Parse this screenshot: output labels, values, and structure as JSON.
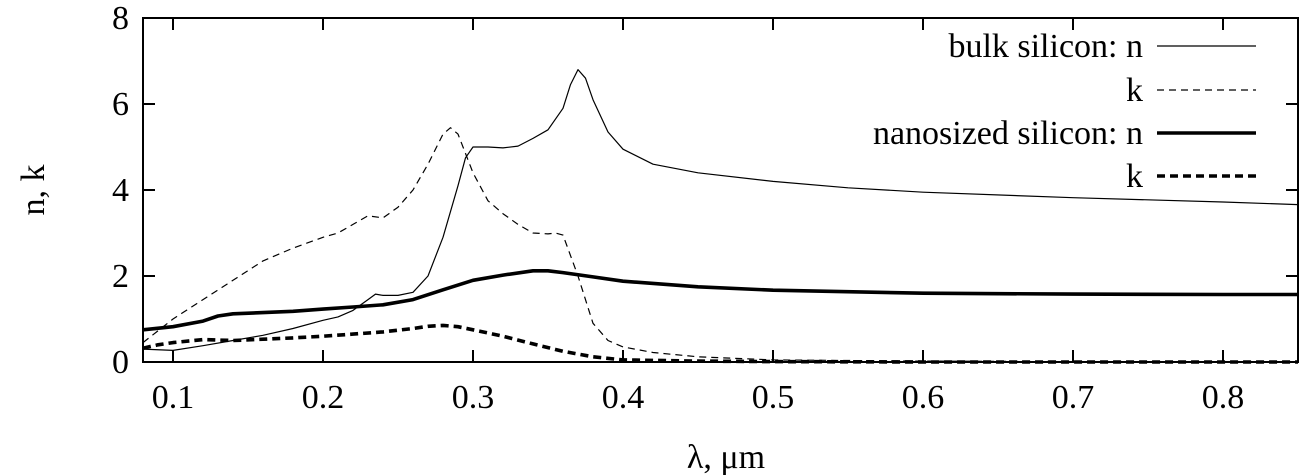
{
  "chart_data": {
    "type": "line",
    "title": "",
    "xlabel": "λ, μm",
    "ylabel": "n, k",
    "xlim": [
      0.08,
      0.85
    ],
    "ylim": [
      0,
      8
    ],
    "xticks": [
      0.1,
      0.2,
      0.3,
      0.4,
      0.5,
      0.6,
      0.7,
      0.8
    ],
    "xtick_labels": [
      "0.1",
      "0.2",
      "0.3",
      "0.4",
      "0.5",
      "0.6",
      "0.7",
      "0.8"
    ],
    "yticks": [
      0,
      2,
      4,
      6,
      8
    ],
    "ytick_labels": [
      "0",
      "2",
      "4",
      "6",
      "8"
    ],
    "grid": false,
    "legend_position": "top-right",
    "series": [
      {
        "name": "bulk silicon: n",
        "legend_label": "bulk silicon: n",
        "style": "solid-thin",
        "x": [
          0.08,
          0.1,
          0.12,
          0.14,
          0.16,
          0.18,
          0.2,
          0.21,
          0.22,
          0.23,
          0.235,
          0.24,
          0.25,
          0.26,
          0.27,
          0.28,
          0.29,
          0.295,
          0.3,
          0.31,
          0.32,
          0.33,
          0.34,
          0.35,
          0.36,
          0.365,
          0.37,
          0.375,
          0.38,
          0.39,
          0.4,
          0.42,
          0.45,
          0.5,
          0.55,
          0.6,
          0.7,
          0.8,
          0.85
        ],
        "y": [
          0.3,
          0.27,
          0.38,
          0.5,
          0.62,
          0.78,
          0.97,
          1.05,
          1.2,
          1.45,
          1.58,
          1.55,
          1.55,
          1.62,
          2.0,
          2.9,
          4.1,
          4.75,
          5.0,
          5.0,
          4.98,
          5.02,
          5.2,
          5.4,
          5.9,
          6.45,
          6.8,
          6.6,
          6.1,
          5.35,
          4.95,
          4.6,
          4.4,
          4.2,
          4.05,
          3.95,
          3.82,
          3.72,
          3.66
        ]
      },
      {
        "name": "bulk silicon: k",
        "legend_label": "k",
        "style": "dashed-thin",
        "x": [
          0.08,
          0.1,
          0.12,
          0.14,
          0.16,
          0.18,
          0.2,
          0.21,
          0.22,
          0.23,
          0.24,
          0.25,
          0.26,
          0.27,
          0.28,
          0.285,
          0.29,
          0.3,
          0.31,
          0.32,
          0.33,
          0.34,
          0.35,
          0.355,
          0.36,
          0.37,
          0.38,
          0.39,
          0.4,
          0.42,
          0.45,
          0.5,
          0.6,
          0.7,
          0.8,
          0.85
        ],
        "y": [
          0.45,
          1.0,
          1.45,
          1.9,
          2.35,
          2.65,
          2.9,
          3.0,
          3.2,
          3.4,
          3.35,
          3.6,
          4.0,
          4.6,
          5.3,
          5.45,
          5.3,
          4.4,
          3.75,
          3.45,
          3.2,
          3.0,
          2.98,
          3.0,
          2.95,
          2.0,
          0.9,
          0.5,
          0.35,
          0.22,
          0.12,
          0.05,
          0.02,
          0.01,
          0.01,
          0.01
        ]
      },
      {
        "name": "nanosized silicon: n",
        "legend_label": "nanosized silicon: n",
        "style": "solid-thick",
        "x": [
          0.08,
          0.1,
          0.12,
          0.13,
          0.14,
          0.16,
          0.18,
          0.2,
          0.22,
          0.24,
          0.26,
          0.28,
          0.3,
          0.32,
          0.34,
          0.35,
          0.36,
          0.38,
          0.4,
          0.45,
          0.5,
          0.6,
          0.7,
          0.8,
          0.85
        ],
        "y": [
          0.75,
          0.82,
          0.95,
          1.07,
          1.12,
          1.15,
          1.18,
          1.23,
          1.28,
          1.33,
          1.45,
          1.68,
          1.9,
          2.02,
          2.12,
          2.12,
          2.08,
          1.98,
          1.88,
          1.75,
          1.67,
          1.6,
          1.58,
          1.57,
          1.57
        ]
      },
      {
        "name": "nanosized silicon: k",
        "legend_label": "k",
        "style": "dashed-thick",
        "x": [
          0.08,
          0.09,
          0.1,
          0.12,
          0.14,
          0.16,
          0.18,
          0.2,
          0.22,
          0.24,
          0.26,
          0.27,
          0.28,
          0.29,
          0.3,
          0.32,
          0.34,
          0.36,
          0.38,
          0.4,
          0.45,
          0.5,
          0.6,
          0.7,
          0.8,
          0.85
        ],
        "y": [
          0.32,
          0.4,
          0.45,
          0.52,
          0.5,
          0.53,
          0.56,
          0.6,
          0.65,
          0.7,
          0.78,
          0.83,
          0.85,
          0.82,
          0.75,
          0.6,
          0.42,
          0.25,
          0.12,
          0.05,
          0.02,
          0.01,
          0.0,
          0.0,
          0.0,
          0.0
        ]
      }
    ]
  }
}
